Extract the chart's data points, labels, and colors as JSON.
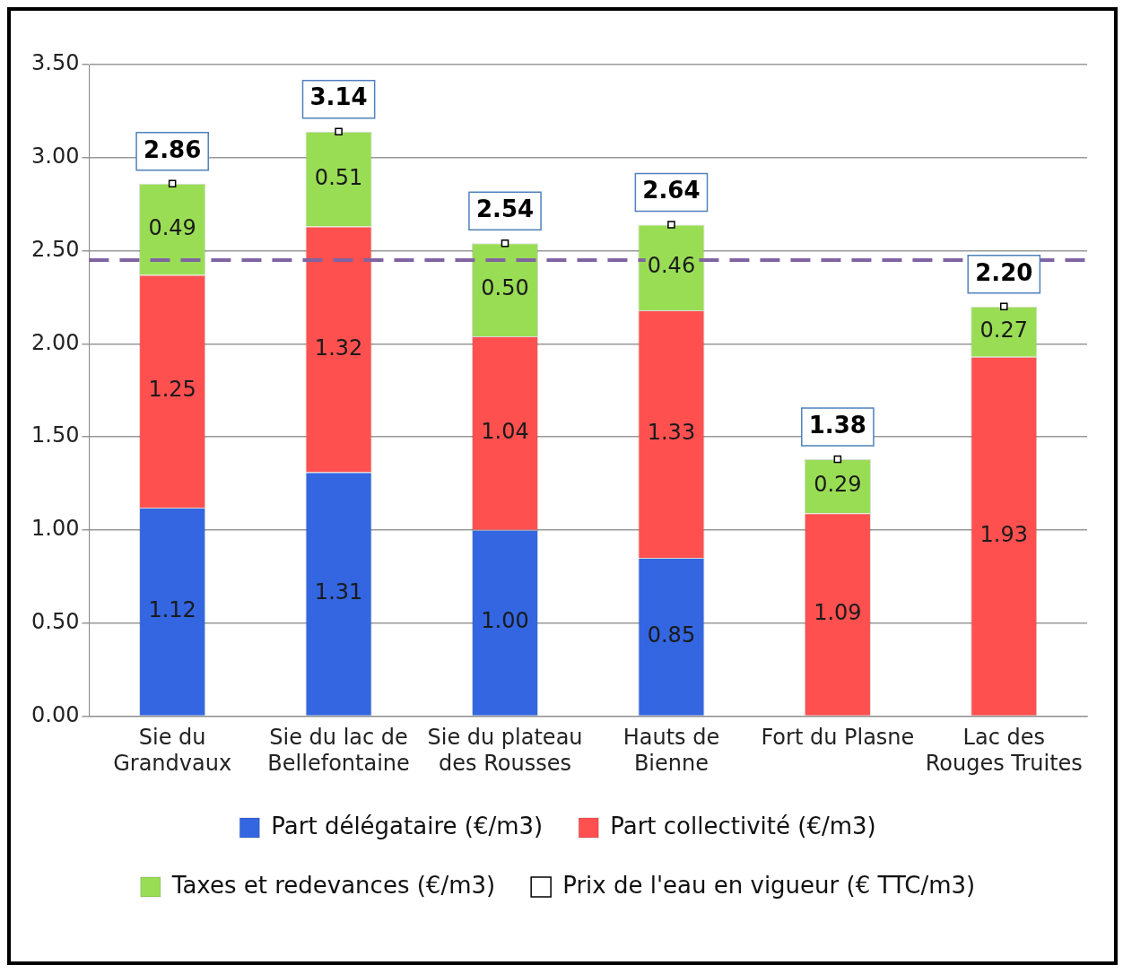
{
  "chart_data": {
    "type": "bar",
    "stacked": true,
    "categories": [
      "Sie du\nGrandvaux",
      "Sie du lac de\nBellefontaine",
      "Sie du plateau\ndes Rousses",
      "Hauts de\nBienne",
      "Fort du Plasne",
      "Lac des\nRouges Truites"
    ],
    "series": [
      {
        "name": "Part délégataire (€/m3)",
        "color": "#3366e0",
        "values": [
          1.12,
          1.31,
          1.0,
          0.85,
          null,
          null
        ],
        "value_labels": [
          "1.12",
          "1.31",
          "1.00",
          "0.85",
          null,
          null
        ]
      },
      {
        "name": "Part collectivité (€/m3)",
        "color": "#ff5050",
        "values": [
          1.25,
          1.32,
          1.04,
          1.33,
          1.09,
          1.93
        ],
        "value_labels": [
          "1.25",
          "1.32",
          "1.04",
          "1.33",
          "1.09",
          "1.93"
        ]
      },
      {
        "name": "Taxes et redevances (€/m3)",
        "color": "#99dd55",
        "values": [
          0.49,
          0.51,
          0.5,
          0.46,
          0.29,
          0.27
        ],
        "value_labels": [
          "0.49",
          "0.51",
          "0.50",
          "0.46",
          "0.29",
          "0.27"
        ]
      },
      {
        "name": "Prix de l'eau en vigueur (€ TTC/m3)",
        "type": "scatter",
        "color": "#ffffff",
        "marker": "square",
        "values": [
          2.86,
          3.14,
          2.54,
          2.64,
          1.38,
          2.2
        ],
        "value_labels": [
          "2.86",
          "3.14",
          "2.54",
          "2.64",
          "1.38",
          "2.20"
        ]
      }
    ],
    "ylim": [
      0,
      3.5
    ],
    "yticks": [
      {
        "value": 0,
        "label": "0.00"
      },
      {
        "value": 0.5,
        "label": "0.50"
      },
      {
        "value": 1,
        "label": "1.00"
      },
      {
        "value": 1.5,
        "label": "1.50"
      },
      {
        "value": 2,
        "label": "2.00"
      },
      {
        "value": 2.5,
        "label": "2.50"
      },
      {
        "value": 3,
        "label": "3.00"
      },
      {
        "value": 3.5,
        "label": "3.50"
      }
    ],
    "grid": "y",
    "legend": "bottom",
    "ref_lines": [
      {
        "axis": "y",
        "value": 2.45,
        "color": "#8064a2",
        "line_style": "dashed"
      }
    ]
  }
}
